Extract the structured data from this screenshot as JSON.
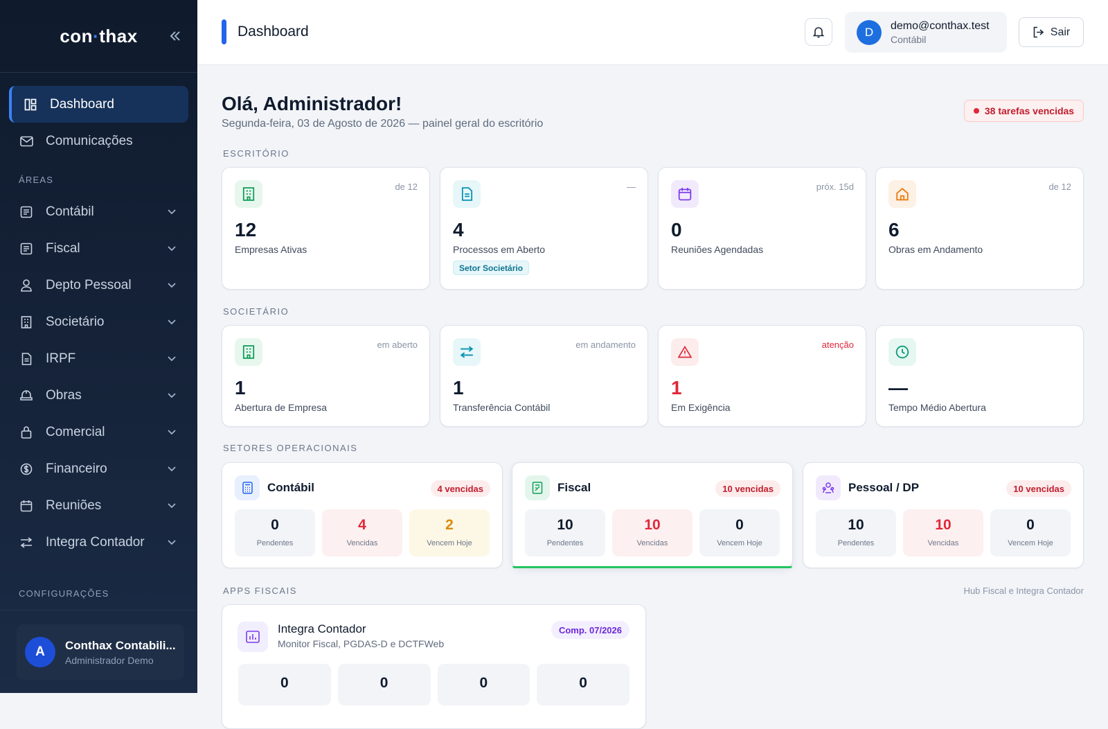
{
  "sidebar": {
    "logo_left": "con",
    "logo_dot": "·",
    "logo_right": "thax",
    "top_items": [
      {
        "label": "Dashboard",
        "icon": "dashboard-icon"
      },
      {
        "label": "Comunicações",
        "icon": "mail-icon"
      }
    ],
    "areas_label": "ÁREAS",
    "areas": [
      {
        "label": "Contábil",
        "icon": "ledger-icon"
      },
      {
        "label": "Fiscal",
        "icon": "ledger-icon"
      },
      {
        "label": "Depto Pessoal",
        "icon": "user-icon"
      },
      {
        "label": "Societário",
        "icon": "building-icon"
      },
      {
        "label": "IRPF",
        "icon": "document-icon"
      },
      {
        "label": "Obras",
        "icon": "construction-icon"
      },
      {
        "label": "Comercial",
        "icon": "bag-icon"
      },
      {
        "label": "Financeiro",
        "icon": "dollar-icon"
      },
      {
        "label": "Reuniões",
        "icon": "calendar-icon"
      },
      {
        "label": "Integra Contador",
        "icon": "transfer-icon"
      }
    ],
    "config_label": "CONFIGURAÇÕES",
    "user": {
      "initial": "A",
      "name": "Conthax Contabili...",
      "role": "Administrador Demo"
    }
  },
  "topbar": {
    "title": "Dashboard",
    "user_initial": "D",
    "user_email": "demo@conthax.test",
    "user_role": "Contábil",
    "logout_label": "Sair"
  },
  "main": {
    "greeting": "Olá, Administrador!",
    "subtitle": "Segunda-feira, 03 de Agosto de 2026 — painel geral do escritório",
    "alert": "38 tarefas vencidas",
    "sections": {
      "escritorio": "ESCRITÓRIO",
      "societario": "SOCIETÁRIO",
      "setores": "SETORES OPERACIONAIS",
      "apps": "APPS FISCAIS",
      "apps_right": "Hub Fiscal e Integra Contador"
    },
    "escritorio_cards": [
      {
        "value": "12",
        "label": "Empresas Ativas",
        "corner": "de 12",
        "icon": "building-icon",
        "color": "#0f9d58"
      },
      {
        "value": "4",
        "label": "Processos em Aberto",
        "corner": "—",
        "tag": "Setor Societário",
        "icon": "document-icon",
        "color": "#0891b2"
      },
      {
        "value": "0",
        "label": "Reuniões Agendadas",
        "corner": "próx. 15d",
        "icon": "calendar-icon",
        "color": "#7c3aed"
      },
      {
        "value": "6",
        "label": "Obras em Andamento",
        "corner": "de 12",
        "icon": "home-icon",
        "color": "#ea7a0c"
      }
    ],
    "societario_cards": [
      {
        "value": "1",
        "label": "Abertura de Empresa",
        "corner": "em aberto",
        "icon": "building-icon",
        "color": "#0f9d58"
      },
      {
        "value": "1",
        "label": "Transferência Contábil",
        "corner": "em andamento",
        "icon": "transfer-icon",
        "color": "#0891b2"
      },
      {
        "value": "1",
        "label": "Em Exigência",
        "corner": "atenção",
        "icon": "warning-icon",
        "color": "#e0283a"
      },
      {
        "value": "—",
        "label": "Tempo Médio Abertura",
        "corner": "",
        "icon": "clock-icon",
        "color": "#0f9d7a"
      }
    ],
    "setores": [
      {
        "name": "Contábil",
        "badge": "4 vencidas",
        "icon": "calculator-icon",
        "pendentes": "0",
        "vencidas": "4",
        "hoje": "2"
      },
      {
        "name": "Fiscal",
        "badge": "10 vencidas",
        "icon": "receipt-icon",
        "pendentes": "10",
        "vencidas": "10",
        "hoje": "0"
      },
      {
        "name": "Pessoal / DP",
        "badge": "10 vencidas",
        "icon": "team-icon",
        "pendentes": "10",
        "vencidas": "10",
        "hoje": "0"
      }
    ],
    "stat_labels": {
      "pendentes": "Pendentes",
      "vencidas": "Vencidas",
      "hoje": "Vencem Hoje"
    },
    "integra": {
      "title": "Integra Contador",
      "desc": "Monitor Fiscal, PGDAS-D e DCTFWeb",
      "comp": "Comp. 07/2026",
      "values": [
        "0",
        "0",
        "0",
        "0"
      ]
    }
  }
}
